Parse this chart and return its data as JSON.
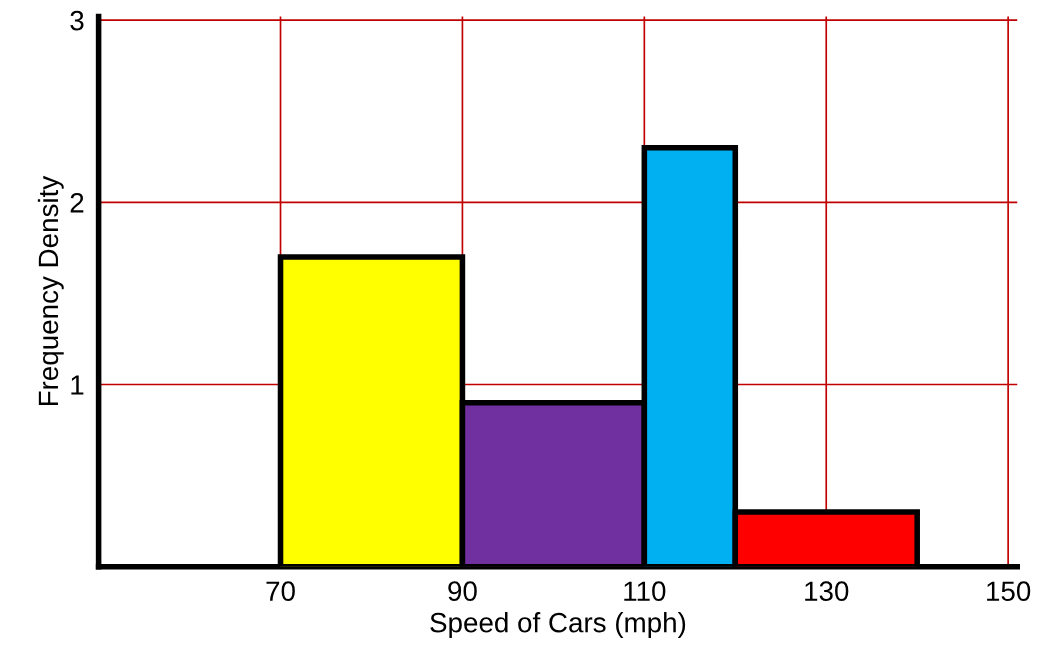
{
  "chart_data": {
    "type": "histogram",
    "xlabel": "Speed of Cars (mph)",
    "ylabel": "Frequency Density",
    "bins": [
      70,
      90,
      110,
      120,
      140
    ],
    "values": [
      1.7,
      0.9,
      2.3,
      0.3
    ],
    "colors": [
      "#ffff00",
      "#7030a0",
      "#00b0f0",
      "#ff0000"
    ],
    "xlim": [
      50,
      151
    ],
    "ylim": [
      0,
      3.02
    ],
    "xticks": [
      70,
      90,
      110,
      130,
      150
    ],
    "yticks": [
      1,
      2,
      3
    ],
    "grid": true
  }
}
